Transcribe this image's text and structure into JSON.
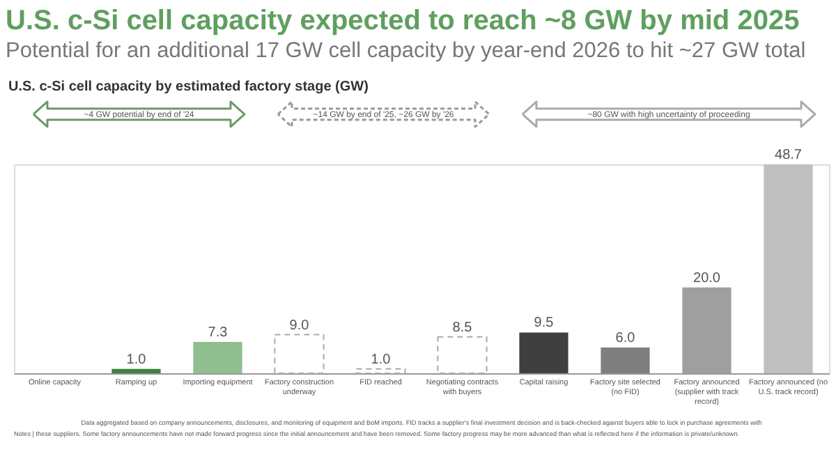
{
  "chart_data": {
    "type": "bar",
    "title": "U.S. c-Si cell capacity expected to reach ~8 GW by mid 2025",
    "subtitle": "Potential for an additional 17 GW cell capacity by year-end 2026 to hit ~27 GW total",
    "categories": [
      "Online capacity",
      "Ramping up",
      "Importing equipment",
      "Factory construction underway",
      "FID reached",
      "Negotiating contracts with buyers",
      "Capital raising",
      "Factory site selected (no FID)",
      "Factory announced (supplier with track record)",
      "Factory announced (no U.S. track record)"
    ],
    "values": [
      null,
      1.0,
      7.3,
      9.0,
      1.0,
      8.5,
      9.5,
      6.0,
      20.0,
      48.7
    ],
    "colors": [
      "#4a8a4a",
      "#3f7f3f",
      "#8fbf8f",
      "#ffffff",
      "#ffffff",
      "#ffffff",
      "#3f3f3f",
      "#7f7f7f",
      "#9f9f9f",
      "#bfbfbf"
    ],
    "value_labels": [
      null,
      "1.0",
      "7.3",
      "9.0",
      "1.0",
      "8.5",
      "9.5",
      "6.0",
      "20.0",
      "48.7"
    ],
    "annotations": [
      "U.S. c-Si cell capacity by estimated factory stage (GW)",
      "~4 GW potential by end of '24",
      "~14 GW by end of '25, ~26 GW by '26",
      "~80 GW with high uncertainty of proceeding",
      "Data aggregated based on company announcements, disclosures, and monitoring of equipment and BoM imports. FID tracks a supplier's final investment decision and is back-checked against buyers able to lock in purchase agreements with",
      "Notes | these suppliers. Some factory announcements have not made forward progress since the initial announcement and have been removed. Some factory progress may be more advanced than what is reflected here if the information is private/unknown."
    ]
  }
}
